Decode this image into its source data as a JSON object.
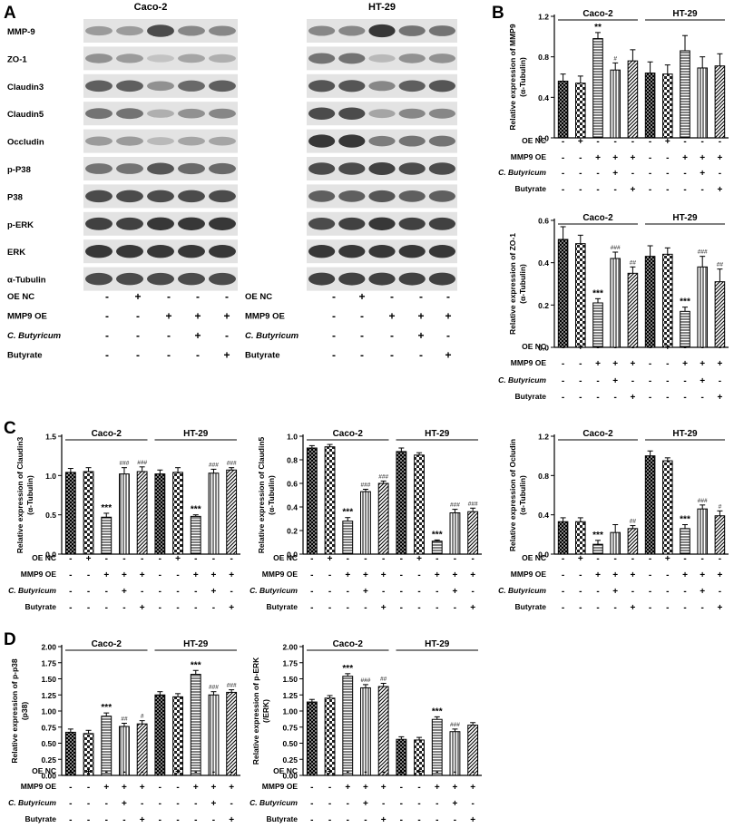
{
  "panel_letters": {
    "a": "A",
    "b": "B",
    "c": "C",
    "d": "D"
  },
  "blot": {
    "cell_lines": [
      "Caco-2",
      "HT-29"
    ],
    "proteins": [
      "MMP-9",
      "ZO-1",
      "Claudin3",
      "Claudin5",
      "Occludin",
      "p-P38",
      "P38",
      "p-ERK",
      "ERK",
      "α-Tubulin"
    ],
    "lane_intensity": {
      "Caco-2": [
        [
          0.35,
          0.35,
          0.75,
          0.45,
          0.45
        ],
        [
          0.4,
          0.35,
          0.15,
          0.3,
          0.25
        ],
        [
          0.65,
          0.65,
          0.4,
          0.6,
          0.65
        ],
        [
          0.55,
          0.55,
          0.25,
          0.4,
          0.45
        ],
        [
          0.35,
          0.35,
          0.2,
          0.3,
          0.3
        ],
        [
          0.55,
          0.55,
          0.7,
          0.6,
          0.6
        ],
        [
          0.75,
          0.75,
          0.75,
          0.75,
          0.75
        ],
        [
          0.8,
          0.8,
          0.85,
          0.85,
          0.85
        ],
        [
          0.85,
          0.85,
          0.85,
          0.85,
          0.85
        ],
        [
          0.75,
          0.75,
          0.75,
          0.75,
          0.75
        ]
      ],
      "HT-29": [
        [
          0.45,
          0.45,
          0.85,
          0.55,
          0.55
        ],
        [
          0.55,
          0.55,
          0.2,
          0.4,
          0.4
        ],
        [
          0.7,
          0.7,
          0.45,
          0.65,
          0.7
        ],
        [
          0.75,
          0.75,
          0.3,
          0.45,
          0.45
        ],
        [
          0.85,
          0.85,
          0.5,
          0.55,
          0.55
        ],
        [
          0.75,
          0.75,
          0.8,
          0.75,
          0.75
        ],
        [
          0.65,
          0.65,
          0.7,
          0.65,
          0.65
        ],
        [
          0.75,
          0.8,
          0.85,
          0.8,
          0.8
        ],
        [
          0.85,
          0.85,
          0.85,
          0.85,
          0.85
        ],
        [
          0.8,
          0.8,
          0.8,
          0.8,
          0.8
        ]
      ]
    },
    "treatment_rows": [
      "OE NC",
      "MMP9 OE",
      "C. Butyricum",
      "Butyrate"
    ],
    "signs": [
      [
        "-",
        "+",
        "-",
        "-",
        "-"
      ],
      [
        "-",
        "-",
        "+",
        "+",
        "+"
      ],
      [
        "-",
        "-",
        "-",
        "+",
        "-"
      ],
      [
        "-",
        "-",
        "-",
        "-",
        "+"
      ]
    ]
  },
  "bar_treatment_rows": [
    "OE NC",
    "MMP9 OE",
    "C. Butyricum",
    "Butyrate"
  ],
  "bar_signs": [
    [
      "-",
      "+",
      "-",
      "-",
      "-",
      "-",
      "+",
      "-",
      "-",
      "-"
    ],
    [
      "-",
      "-",
      "+",
      "+",
      "+",
      "-",
      "-",
      "+",
      "+",
      "+"
    ],
    [
      "-",
      "-",
      "-",
      "+",
      "-",
      "-",
      "-",
      "-",
      "+",
      "-"
    ],
    [
      "-",
      "-",
      "-",
      "-",
      "+",
      "-",
      "-",
      "-",
      "-",
      "+"
    ]
  ],
  "fill_patterns": [
    "dense",
    "check",
    "horizontal",
    "vertical",
    "diagonal",
    "dense",
    "check",
    "horizontal",
    "vertical",
    "diagonal"
  ],
  "chart_data": [
    {
      "type": "bar",
      "panel": "B",
      "ylabel": "Relative expression of MMP9",
      "ylabel2": "(α-Tubulin)",
      "groups": [
        "Caco-2",
        "HT-29"
      ],
      "ylim": [
        0,
        1.2
      ],
      "yticks": [
        "0.0",
        "0.4",
        "0.8",
        "1.2"
      ],
      "ytick_values": [
        0,
        0.4,
        0.8,
        1.2
      ],
      "values": [
        0.56,
        0.54,
        0.98,
        0.67,
        0.76,
        0.64,
        0.63,
        0.86,
        0.69,
        0.71
      ],
      "errors": [
        0.07,
        0.07,
        0.06,
        0.07,
        0.11,
        0.11,
        0.09,
        0.15,
        0.11,
        0.12
      ],
      "annotations": [
        "",
        "",
        "**",
        "#",
        "",
        "",
        "",
        "",
        "",
        ""
      ]
    },
    {
      "type": "bar",
      "panel": "B",
      "ylabel": "Relative expression of ZO-1",
      "ylabel2": "(α-Tubulin)",
      "groups": [
        "Caco-2",
        "HT-29"
      ],
      "ylim": [
        0,
        0.6
      ],
      "yticks": [
        "0.0",
        "0.2",
        "0.4",
        "0.6"
      ],
      "ytick_values": [
        0,
        0.2,
        0.4,
        0.6
      ],
      "values": [
        0.51,
        0.49,
        0.21,
        0.42,
        0.35,
        0.43,
        0.44,
        0.17,
        0.38,
        0.31
      ],
      "errors": [
        0.06,
        0.04,
        0.02,
        0.03,
        0.03,
        0.05,
        0.03,
        0.02,
        0.05,
        0.06
      ],
      "annotations": [
        "",
        "",
        "***",
        "###",
        "##",
        "",
        "",
        "***",
        "###",
        "##"
      ]
    },
    {
      "type": "bar",
      "panel": "C",
      "ylabel": "Relative expression of Claudin3",
      "ylabel2": "(α-Tubulin)",
      "groups": [
        "Caco-2",
        "HT-29"
      ],
      "ylim": [
        0,
        1.5
      ],
      "yticks": [
        "0.0",
        "0.5",
        "1.0",
        "1.5"
      ],
      "ytick_values": [
        0,
        0.5,
        1.0,
        1.5
      ],
      "values": [
        1.04,
        1.05,
        0.47,
        1.02,
        1.05,
        1.02,
        1.04,
        0.48,
        1.03,
        1.07
      ],
      "errors": [
        0.05,
        0.05,
        0.05,
        0.08,
        0.06,
        0.05,
        0.06,
        0.02,
        0.05,
        0.03
      ],
      "annotations": [
        "",
        "",
        "***",
        "###",
        "###",
        "",
        "",
        "***",
        "###",
        "###"
      ]
    },
    {
      "type": "bar",
      "panel": "C",
      "ylabel": "Relative expression of Claudin5",
      "ylabel2": "(α-Tubulin)",
      "groups": [
        "Caco-2",
        "HT-29"
      ],
      "ylim": [
        0,
        1.0
      ],
      "yticks": [
        "0.0",
        "0.2",
        "0.4",
        "0.6",
        "0.8",
        "1.0"
      ],
      "ytick_values": [
        0,
        0.2,
        0.4,
        0.6,
        0.8,
        1.0
      ],
      "values": [
        0.9,
        0.91,
        0.28,
        0.53,
        0.6,
        0.87,
        0.84,
        0.11,
        0.35,
        0.36
      ],
      "errors": [
        0.02,
        0.02,
        0.03,
        0.02,
        0.02,
        0.03,
        0.02,
        0.01,
        0.03,
        0.03
      ],
      "annotations": [
        "",
        "",
        "***",
        "###",
        "###",
        "",
        "",
        "***",
        "###",
        "###"
      ]
    },
    {
      "type": "bar",
      "panel": "C",
      "ylabel": "Relative expression of Ocludin",
      "ylabel2": "(α-Tubulin)",
      "groups": [
        "Caco-2",
        "HT-29"
      ],
      "ylim": [
        0,
        1.2
      ],
      "yticks": [
        "0.0",
        "0.4",
        "0.8",
        "1.2"
      ],
      "ytick_values": [
        0,
        0.4,
        0.8,
        1.2
      ],
      "values": [
        0.33,
        0.33,
        0.1,
        0.22,
        0.26,
        1.0,
        0.95,
        0.26,
        0.46,
        0.39
      ],
      "errors": [
        0.04,
        0.04,
        0.04,
        0.08,
        0.03,
        0.05,
        0.03,
        0.04,
        0.04,
        0.05
      ],
      "annotations": [
        "",
        "",
        "***",
        "",
        "##",
        "",
        "",
        "***",
        "###",
        "#"
      ]
    },
    {
      "type": "bar",
      "panel": "D",
      "ylabel": "Relative expression of p-p38",
      "ylabel2": "(p38)",
      "groups": [
        "Caco-2",
        "HT-29"
      ],
      "ylim": [
        0,
        2.0
      ],
      "yticks": [
        "0.00",
        "0.25",
        "0.50",
        "0.75",
        "1.00",
        "1.25",
        "1.50",
        "1.75",
        "2.00"
      ],
      "ytick_values": [
        0,
        0.25,
        0.5,
        0.75,
        1.0,
        1.25,
        1.5,
        1.75,
        2.0
      ],
      "values": [
        0.67,
        0.65,
        0.92,
        0.76,
        0.8,
        1.25,
        1.22,
        1.57,
        1.25,
        1.29
      ],
      "errors": [
        0.05,
        0.05,
        0.05,
        0.05,
        0.05,
        0.05,
        0.05,
        0.06,
        0.05,
        0.04
      ],
      "annotations": [
        "",
        "",
        "***",
        "##",
        "#",
        "",
        "",
        "***",
        "###",
        "###"
      ]
    },
    {
      "type": "bar",
      "panel": "D",
      "ylabel": "Relative expression of p-ERK",
      "ylabel2": "(/ERK)",
      "groups": [
        "Caco-2",
        "HT-29"
      ],
      "ylim": [
        0,
        2.0
      ],
      "yticks": [
        "0.00",
        "0.25",
        "0.50",
        "0.75",
        "1.00",
        "1.25",
        "1.50",
        "1.75",
        "2.00"
      ],
      "ytick_values": [
        0,
        0.25,
        0.5,
        0.75,
        1.0,
        1.25,
        1.5,
        1.75,
        2.0
      ],
      "values": [
        1.14,
        1.2,
        1.54,
        1.36,
        1.38,
        0.56,
        0.55,
        0.87,
        0.68,
        0.78
      ],
      "errors": [
        0.04,
        0.04,
        0.04,
        0.05,
        0.05,
        0.04,
        0.04,
        0.04,
        0.04,
        0.04
      ],
      "annotations": [
        "",
        "",
        "***",
        "###",
        "##",
        "",
        "",
        "***",
        "###",
        ""
      ]
    }
  ]
}
